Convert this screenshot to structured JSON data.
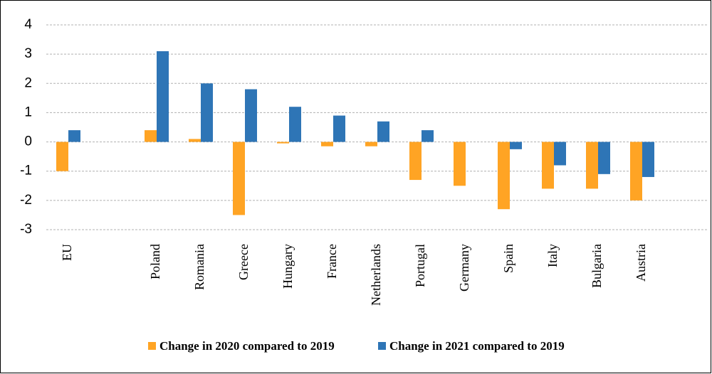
{
  "chart_data": {
    "type": "bar",
    "categories": [
      "EU",
      null,
      "Poland",
      "Romania",
      "Greece",
      "Hungary",
      "France",
      "Netherlands",
      "Portugal",
      "Germany",
      "Spain",
      "Italy",
      "Bulgaria",
      "Austria",
      null
    ],
    "series": [
      {
        "name": "Change in 2020 compared to 2019",
        "color": "#ffa424",
        "values": [
          -1.0,
          null,
          0.4,
          0.1,
          -2.5,
          -0.05,
          -0.15,
          -0.15,
          -1.3,
          -1.5,
          -2.3,
          -1.6,
          -1.6,
          -2.0,
          null
        ]
      },
      {
        "name": "Change in 2021 compared to 2019",
        "color": "#2e75b6",
        "values": [
          0.4,
          null,
          3.1,
          2.0,
          1.8,
          1.2,
          0.9,
          0.7,
          0.4,
          0,
          -0.25,
          -0.8,
          -1.1,
          -1.2,
          null
        ]
      }
    ],
    "ylim": [
      -3,
      4
    ],
    "yticks": [
      -3,
      -2,
      -1,
      0,
      1,
      2,
      3,
      4
    ],
    "grid": true,
    "legend": "bottom"
  }
}
